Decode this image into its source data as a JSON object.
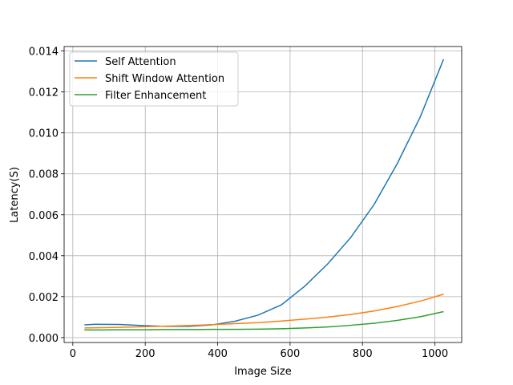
{
  "chart_data": {
    "type": "line",
    "xlabel": "Image Size",
    "ylabel": "Latency(S)",
    "x": [
      32,
      64,
      128,
      192,
      256,
      320,
      384,
      448,
      512,
      576,
      640,
      704,
      768,
      832,
      896,
      960,
      1024
    ],
    "series": [
      {
        "name": "Self Attention",
        "color": "#1f77b4",
        "values": [
          0.00062,
          0.00065,
          0.00064,
          0.00059,
          0.00055,
          0.00055,
          0.00062,
          0.0008,
          0.0011,
          0.0016,
          0.0025,
          0.0036,
          0.0049,
          0.0065,
          0.0085,
          0.0108,
          0.0136
        ]
      },
      {
        "name": "Shift Window Attention",
        "color": "#ff7f0e",
        "values": [
          0.00047,
          0.00048,
          0.0005,
          0.00053,
          0.00056,
          0.00059,
          0.00063,
          0.00068,
          0.00073,
          0.00081,
          0.0009,
          0.001,
          0.00113,
          0.0013,
          0.00152,
          0.00178,
          0.00212
        ]
      },
      {
        "name": "Filter Enhancement",
        "color": "#2ca02c",
        "values": [
          0.00037,
          0.00037,
          0.00038,
          0.00038,
          0.00039,
          0.00039,
          0.0004,
          0.0004,
          0.00041,
          0.00043,
          0.00047,
          0.00052,
          0.0006,
          0.0007,
          0.00084,
          0.00102,
          0.00127
        ]
      }
    ],
    "xlim": [
      -24,
      1074
    ],
    "ylim": [
      -0.00024,
      0.01422
    ],
    "xticks": [
      0,
      200,
      400,
      600,
      800,
      1000
    ],
    "yticks": [
      {
        "value": 0,
        "label": "0.000"
      },
      {
        "value": 0.002,
        "label": "0.002"
      },
      {
        "value": 0.004,
        "label": "0.004"
      },
      {
        "value": 0.006,
        "label": "0.006"
      },
      {
        "value": 0.008,
        "label": "0.008"
      },
      {
        "value": 0.01,
        "label": "0.010"
      },
      {
        "value": 0.012,
        "label": "0.012"
      },
      {
        "value": 0.014,
        "label": "0.014"
      }
    ],
    "grid": true,
    "legend": "upper-left"
  }
}
